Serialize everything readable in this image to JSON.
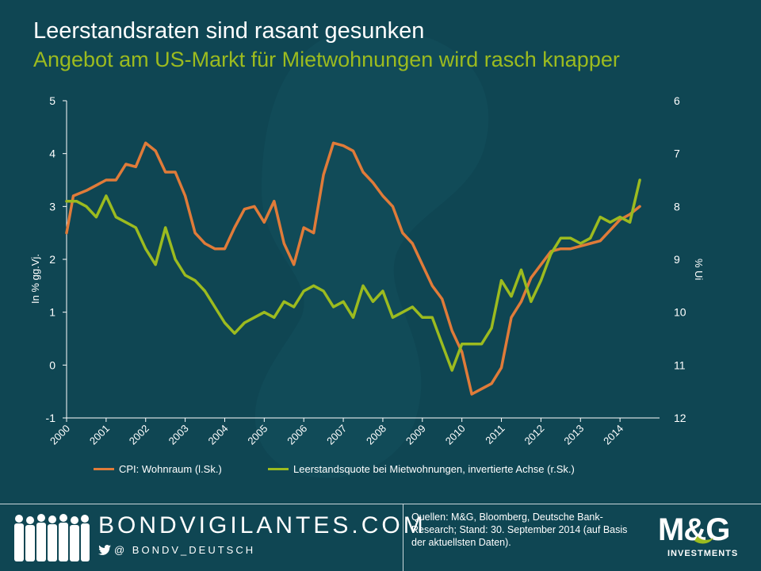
{
  "header": {
    "title": "Leerstandsraten sind rasant gesunken",
    "subtitle": "Angebot am US-Markt für Mietwohnungen wird rasch knapper"
  },
  "colors": {
    "background": "#0f4653",
    "cpi": "#e07b39",
    "vacancy": "#9cbb1f",
    "text": "#ffffff"
  },
  "chart_data": {
    "type": "line",
    "title": "Leerstandsraten sind rasant gesunken",
    "subtitle": "Angebot am US-Markt für Mietwohnungen wird rasch knapper",
    "ylabel_left": "In % gg.Vj.",
    "ylabel_right": "% Ui",
    "xlim": [
      2000,
      2015
    ],
    "ylim_left": [
      -1,
      5
    ],
    "ylim_right": [
      12,
      6
    ],
    "right_axis_inverted": true,
    "x_ticks": [
      "2000",
      "2001",
      "2002",
      "2003",
      "2004",
      "2005",
      "2006",
      "2007",
      "2008",
      "2009",
      "2010",
      "2011",
      "2012",
      "2013",
      "2014"
    ],
    "y_ticks_left": [
      "5",
      "4",
      "3",
      "2",
      "1",
      "0",
      "-1"
    ],
    "y_ticks_right": [
      "6",
      "7",
      "8",
      "9",
      "10",
      "11",
      "12"
    ],
    "legend_position": "bottom",
    "grid": false,
    "series": [
      {
        "name": "CPI: Wohnraum (l.Sk.)",
        "axis": "left",
        "color": "#e07b39",
        "points": [
          [
            2000.0,
            2.5
          ],
          [
            2000.17,
            3.2
          ],
          [
            2000.5,
            3.3
          ],
          [
            2000.75,
            3.4
          ],
          [
            2001.0,
            3.5
          ],
          [
            2001.25,
            3.5
          ],
          [
            2001.5,
            3.8
          ],
          [
            2001.75,
            3.75
          ],
          [
            2002.0,
            4.2
          ],
          [
            2002.25,
            4.05
          ],
          [
            2002.5,
            3.65
          ],
          [
            2002.75,
            3.65
          ],
          [
            2003.0,
            3.2
          ],
          [
            2003.25,
            2.5
          ],
          [
            2003.5,
            2.3
          ],
          [
            2003.75,
            2.2
          ],
          [
            2004.0,
            2.2
          ],
          [
            2004.25,
            2.6
          ],
          [
            2004.5,
            2.95
          ],
          [
            2004.75,
            3.0
          ],
          [
            2005.0,
            2.7
          ],
          [
            2005.25,
            3.1
          ],
          [
            2005.5,
            2.3
          ],
          [
            2005.75,
            1.9
          ],
          [
            2006.0,
            2.6
          ],
          [
            2006.25,
            2.5
          ],
          [
            2006.5,
            3.6
          ],
          [
            2006.75,
            4.2
          ],
          [
            2007.0,
            4.15
          ],
          [
            2007.25,
            4.05
          ],
          [
            2007.5,
            3.65
          ],
          [
            2007.75,
            3.45
          ],
          [
            2008.0,
            3.2
          ],
          [
            2008.25,
            3.0
          ],
          [
            2008.5,
            2.5
          ],
          [
            2008.75,
            2.3
          ],
          [
            2009.0,
            1.9
          ],
          [
            2009.25,
            1.5
          ],
          [
            2009.5,
            1.25
          ],
          [
            2009.75,
            0.65
          ],
          [
            2010.0,
            0.25
          ],
          [
            2010.25,
            -0.55
          ],
          [
            2010.5,
            -0.45
          ],
          [
            2010.75,
            -0.35
          ],
          [
            2011.0,
            -0.05
          ],
          [
            2011.25,
            0.9
          ],
          [
            2011.5,
            1.2
          ],
          [
            2011.75,
            1.65
          ],
          [
            2012.0,
            1.9
          ],
          [
            2012.25,
            2.15
          ],
          [
            2012.5,
            2.2
          ],
          [
            2012.75,
            2.2
          ],
          [
            2013.0,
            2.25
          ],
          [
            2013.25,
            2.3
          ],
          [
            2013.5,
            2.35
          ],
          [
            2013.75,
            2.55
          ],
          [
            2014.0,
            2.75
          ],
          [
            2014.25,
            2.85
          ],
          [
            2014.5,
            3.0
          ]
        ]
      },
      {
        "name": "Leerstandsquote bei Mietwohnungen, invertierte Achse (r.Sk.)",
        "axis": "right",
        "color": "#9cbb1f",
        "points": [
          [
            2000.0,
            7.9
          ],
          [
            2000.25,
            7.9
          ],
          [
            2000.5,
            8.0
          ],
          [
            2000.75,
            8.2
          ],
          [
            2001.0,
            7.8
          ],
          [
            2001.25,
            8.2
          ],
          [
            2001.5,
            8.3
          ],
          [
            2001.75,
            8.4
          ],
          [
            2002.0,
            8.8
          ],
          [
            2002.25,
            9.1
          ],
          [
            2002.5,
            8.4
          ],
          [
            2002.75,
            9.0
          ],
          [
            2003.0,
            9.3
          ],
          [
            2003.25,
            9.4
          ],
          [
            2003.5,
            9.6
          ],
          [
            2003.75,
            9.9
          ],
          [
            2004.0,
            10.2
          ],
          [
            2004.25,
            10.4
          ],
          [
            2004.5,
            10.2
          ],
          [
            2004.75,
            10.1
          ],
          [
            2005.0,
            10.0
          ],
          [
            2005.25,
            10.1
          ],
          [
            2005.5,
            9.8
          ],
          [
            2005.75,
            9.9
          ],
          [
            2006.0,
            9.6
          ],
          [
            2006.25,
            9.5
          ],
          [
            2006.5,
            9.6
          ],
          [
            2006.75,
            9.9
          ],
          [
            2007.0,
            9.8
          ],
          [
            2007.25,
            10.1
          ],
          [
            2007.5,
            9.5
          ],
          [
            2007.75,
            9.8
          ],
          [
            2008.0,
            9.6
          ],
          [
            2008.25,
            10.1
          ],
          [
            2008.5,
            10.0
          ],
          [
            2008.75,
            9.9
          ],
          [
            2009.0,
            10.1
          ],
          [
            2009.25,
            10.1
          ],
          [
            2009.5,
            10.6
          ],
          [
            2009.75,
            11.1
          ],
          [
            2010.0,
            10.6
          ],
          [
            2010.25,
            10.6
          ],
          [
            2010.5,
            10.6
          ],
          [
            2010.75,
            10.3
          ],
          [
            2011.0,
            9.4
          ],
          [
            2011.25,
            9.7
          ],
          [
            2011.5,
            9.2
          ],
          [
            2011.75,
            9.8
          ],
          [
            2012.0,
            9.4
          ],
          [
            2012.25,
            8.9
          ],
          [
            2012.5,
            8.6
          ],
          [
            2012.75,
            8.6
          ],
          [
            2013.0,
            8.7
          ],
          [
            2013.25,
            8.6
          ],
          [
            2013.5,
            8.2
          ],
          [
            2013.75,
            8.3
          ],
          [
            2014.0,
            8.2
          ],
          [
            2014.25,
            8.3
          ],
          [
            2014.5,
            7.5
          ]
        ]
      }
    ]
  },
  "footer": {
    "brand": "BONDVIGILANTES.COM",
    "handle": "@ BONDV_DEUTSCH",
    "source": "Quellen: M&G, Bloomberg, Deutsche Bank-Research; Stand: 30. September 2014 (auf Basis der aktuellsten Daten).",
    "logo_text": "M&G",
    "logo_sub": "INVESTMENTS"
  }
}
